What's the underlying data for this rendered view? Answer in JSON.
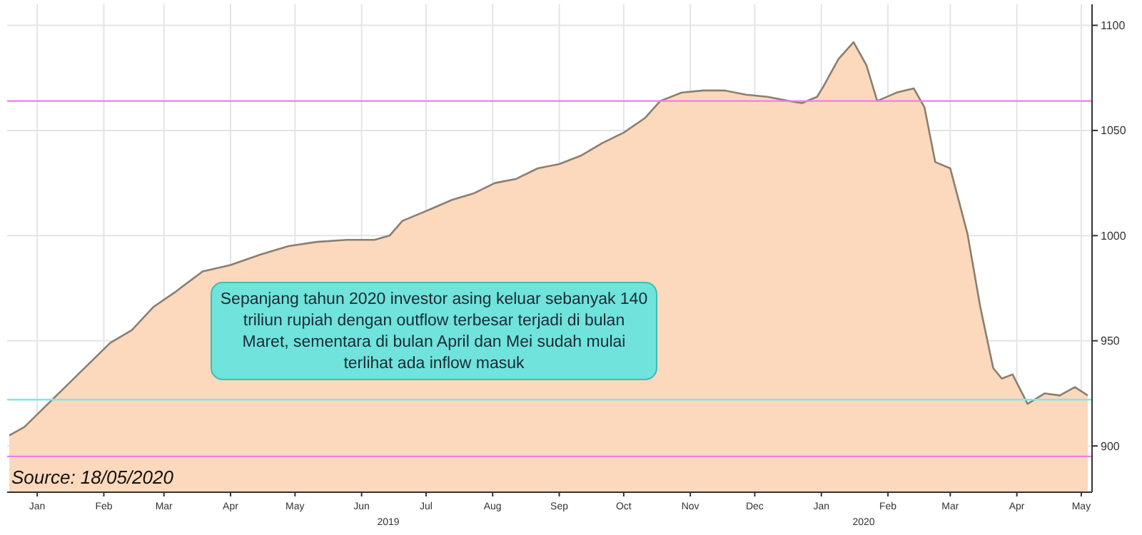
{
  "chart_data": {
    "type": "area",
    "x": [
      "2019-01-02",
      "2019-01-09",
      "2019-01-19",
      "2019-01-29",
      "2019-02-08",
      "2019-02-18",
      "2019-02-28",
      "2019-03-10",
      "2019-03-20",
      "2019-04-02",
      "2019-04-15",
      "2019-04-29",
      "2019-05-12",
      "2019-05-25",
      "2019-06-08",
      "2019-06-21",
      "2019-06-28",
      "2019-07-04",
      "2019-07-11",
      "2019-07-18",
      "2019-07-27",
      "2019-08-06",
      "2019-08-16",
      "2019-08-26",
      "2019-09-05",
      "2019-09-15",
      "2019-09-25",
      "2019-10-05",
      "2019-10-15",
      "2019-10-25",
      "2019-11-01",
      "2019-11-11",
      "2019-11-21",
      "2019-12-01",
      "2019-12-11",
      "2019-12-21",
      "2019-12-31",
      "2020-01-06",
      "2020-01-13",
      "2020-01-16",
      "2020-01-23",
      "2020-01-30",
      "2020-02-05",
      "2020-02-10",
      "2020-02-19",
      "2020-02-27",
      "2020-03-03",
      "2020-03-08",
      "2020-03-15",
      "2020-03-23",
      "2020-03-29",
      "2020-04-04",
      "2020-04-08",
      "2020-04-13",
      "2020-04-20",
      "2020-04-28",
      "2020-05-05",
      "2020-05-12",
      "2020-05-18"
    ],
    "series": [
      {
        "color": "#fcd8bc",
        "values": [
          905,
          909,
          919,
          929,
          939,
          949,
          955,
          966,
          973,
          983,
          986,
          991,
          995,
          997,
          998,
          998,
          1000,
          1007,
          1010,
          1013,
          1017,
          1020,
          1025,
          1027,
          1032,
          1034,
          1038,
          1044,
          1049,
          1056,
          1064,
          1068,
          1069,
          1069,
          1067,
          1066,
          1064,
          1063,
          1066,
          1071,
          1084,
          1092,
          1081,
          1064,
          1068,
          1070,
          1061,
          1035,
          1032,
          1001,
          966,
          937,
          932,
          934,
          920,
          925,
          924,
          928,
          924
        ]
      }
    ],
    "xlim": [
      "2019-01-01",
      "2020-05-20"
    ],
    "xticks": [
      {
        "value": "2019-01-15",
        "label": "Jan"
      },
      {
        "value": "2019-02-15",
        "label": "Feb"
      },
      {
        "value": "2019-03-15",
        "label": "Mar"
      },
      {
        "value": "2019-04-15",
        "label": "Apr"
      },
      {
        "value": "2019-05-15",
        "label": "May"
      },
      {
        "value": "2019-06-15",
        "label": "Jun"
      },
      {
        "value": "2019-07-15",
        "label": "Jul"
      },
      {
        "value": "2019-08-15",
        "label": "Aug"
      },
      {
        "value": "2019-09-15",
        "label": "Sep"
      },
      {
        "value": "2019-10-15",
        "label": "Oct"
      },
      {
        "value": "2019-11-15",
        "label": "Nov"
      },
      {
        "value": "2019-12-15",
        "label": "Dec"
      },
      {
        "value": "2020-01-15",
        "label": "Jan"
      },
      {
        "value": "2020-02-15",
        "label": "Feb"
      },
      {
        "value": "2020-03-15",
        "label": "Mar"
      },
      {
        "value": "2020-04-15",
        "label": "Apr"
      },
      {
        "value": "2020-05-15",
        "label": "May"
      }
    ],
    "ylim": [
      878,
      1110
    ],
    "yticks": [
      900,
      950,
      1000,
      1050,
      1100
    ],
    "grid": true,
    "ref_lines": [
      {
        "axis": "y",
        "value": 1064,
        "color": "#f07cf0"
      },
      {
        "axis": "y",
        "value": 922,
        "color": "#7ee8e8"
      },
      {
        "axis": "y",
        "value": 895,
        "color": "#f07cf0"
      }
    ],
    "annotations": [
      "Sepanjang tahun 2020 investor asing keluar sebanyak 140 triliun rupiah dengan outflow terbesar terjadi di bulan Maret, sementara di bulan April dan Mei sudah mulai terlihat ada inflow masuk",
      "Source: 18/05/2020",
      "2019",
      "2020"
    ]
  }
}
